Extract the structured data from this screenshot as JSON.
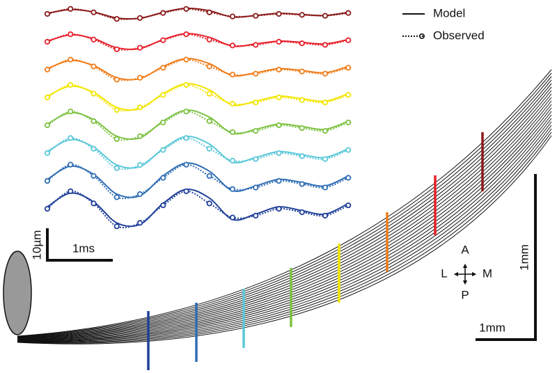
{
  "chart_data": {
    "type": "traces",
    "legend": {
      "model": "Model",
      "observed": "Observed"
    },
    "scale_labels": {
      "amplitude": "10µm",
      "time": "1ms",
      "vertical_distance": "1mm",
      "horizontal_distance": "1mm"
    },
    "compass": {
      "anterior": "A",
      "posterior": "P",
      "lateral": "L",
      "medial": "M"
    },
    "x": [
      0,
      0.35,
      0.7,
      1.05,
      1.4,
      1.75,
      2.1,
      2.45,
      2.8,
      3.15,
      3.5,
      3.85,
      4.2,
      4.55
    ],
    "series": [
      {
        "color": "#8b1a1a",
        "observed": [
          0,
          1.6,
          0.5,
          -1.6,
          -1.3,
          0.3,
          1.6,
          0.5,
          -0.8,
          -0.6,
          0,
          -0.3,
          -0.6,
          0.3
        ],
        "model": [
          0.2,
          1.4,
          0.6,
          -1.3,
          -1.4,
          0.5,
          1.8,
          1,
          -1,
          -0.5,
          0.2,
          -0.2,
          -0.5,
          0.5
        ]
      },
      {
        "color": "#e8202a",
        "observed": [
          0,
          2.4,
          0.7,
          -2.4,
          -1.9,
          0.5,
          2.4,
          0.7,
          -1.2,
          -1,
          0,
          -0.5,
          -1,
          0.5
        ],
        "model": [
          0.2,
          2.2,
          1,
          -1.9,
          -2.2,
          0.7,
          2.6,
          1.4,
          -1.4,
          -0.7,
          0.2,
          -0.2,
          -0.7,
          0.7
        ]
      },
      {
        "color": "#f07d1a",
        "observed": [
          0,
          3.2,
          1,
          -3.2,
          -2.6,
          0.6,
          3.2,
          1,
          -1.6,
          -1.3,
          0,
          -0.6,
          -1.3,
          0.6
        ],
        "model": [
          0.3,
          2.9,
          1.3,
          -2.6,
          -2.9,
          1,
          3.5,
          1.9,
          -1.9,
          -1,
          0.3,
          -0.3,
          -1,
          1
        ]
      },
      {
        "color": "#f2e600",
        "observed": [
          0,
          4,
          1.2,
          -4,
          -3.2,
          0.8,
          4,
          1.2,
          -2,
          -1.6,
          0,
          -0.8,
          -1.6,
          0.8
        ],
        "model": [
          0.4,
          3.6,
          1.6,
          -3.2,
          -3.6,
          1.2,
          4.4,
          2.4,
          -2.4,
          -1.2,
          0.4,
          -0.4,
          -1.2,
          1.2
        ]
      },
      {
        "color": "#7dc242",
        "observed": [
          0,
          4.4,
          1.3,
          -4.4,
          -3.5,
          0.9,
          4.4,
          1.3,
          -2.2,
          -1.8,
          0,
          -0.9,
          -1.8,
          0.9
        ],
        "model": [
          0.4,
          4,
          1.8,
          -3.5,
          -4,
          1.3,
          4.8,
          2.6,
          -2.6,
          -1.3,
          0.4,
          -0.4,
          -1.3,
          1.3
        ]
      },
      {
        "color": "#5bc8d8",
        "observed": [
          0,
          4.8,
          1.4,
          -4.8,
          -3.8,
          1,
          4.8,
          1.4,
          -2.4,
          -1.9,
          0,
          -1,
          -1.9,
          1
        ],
        "model": [
          0.5,
          4.3,
          1.9,
          -3.8,
          -4.3,
          1.4,
          5.3,
          2.9,
          -2.9,
          -1.4,
          0.5,
          -0.5,
          -1.4,
          1.4
        ]
      },
      {
        "color": "#2e6db4",
        "observed": [
          0,
          5.2,
          1.6,
          -5.2,
          -4.2,
          1,
          5.2,
          1.6,
          -2.6,
          -2.1,
          0,
          -1,
          -2.1,
          1
        ],
        "model": [
          0.5,
          4.7,
          2.1,
          -4.2,
          -4.7,
          1.6,
          5.7,
          3.1,
          -3.1,
          -1.6,
          0.5,
          -0.5,
          -1.6,
          1.6
        ]
      },
      {
        "color": "#1f3f99",
        "observed": [
          0,
          5.6,
          1.7,
          -5.6,
          -4.5,
          1.1,
          5.6,
          1.7,
          -2.8,
          -2.2,
          0,
          -1.1,
          -2.2,
          1.1
        ],
        "model": [
          0.6,
          5,
          2.2,
          -4.5,
          -5,
          1.7,
          6.2,
          3.4,
          -3.4,
          -1.7,
          0.6,
          -0.6,
          -1.7,
          1.7
        ]
      }
    ]
  }
}
